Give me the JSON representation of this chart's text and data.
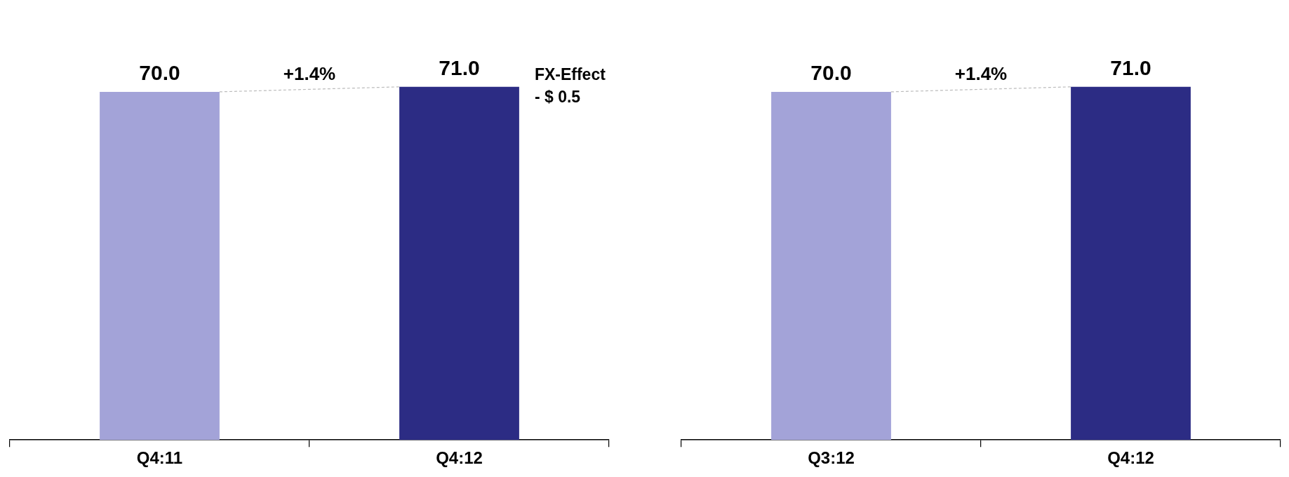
{
  "chart_data": [
    {
      "type": "bar",
      "categories": [
        "Q4:11",
        "Q4:12"
      ],
      "values": [
        70.0,
        71.0
      ],
      "value_labels": [
        "70.0",
        "71.0"
      ],
      "colors": [
        "#a3a3d8",
        "#2c2c84"
      ],
      "tick_labels": "x",
      "grid": false,
      "legend": false,
      "annotations": [
        "+1.4%",
        "FX-Effect\n- $ 0.5"
      ]
    },
    {
      "type": "bar",
      "categories": [
        "Q3:12",
        "Q4:12"
      ],
      "values": [
        70.0,
        71.0
      ],
      "value_labels": [
        "70.0",
        "71.0"
      ],
      "colors": [
        "#a3a3d8",
        "#2c2c84"
      ],
      "tick_labels": "x",
      "grid": false,
      "legend": false,
      "annotations": [
        "+1.4%"
      ]
    }
  ]
}
